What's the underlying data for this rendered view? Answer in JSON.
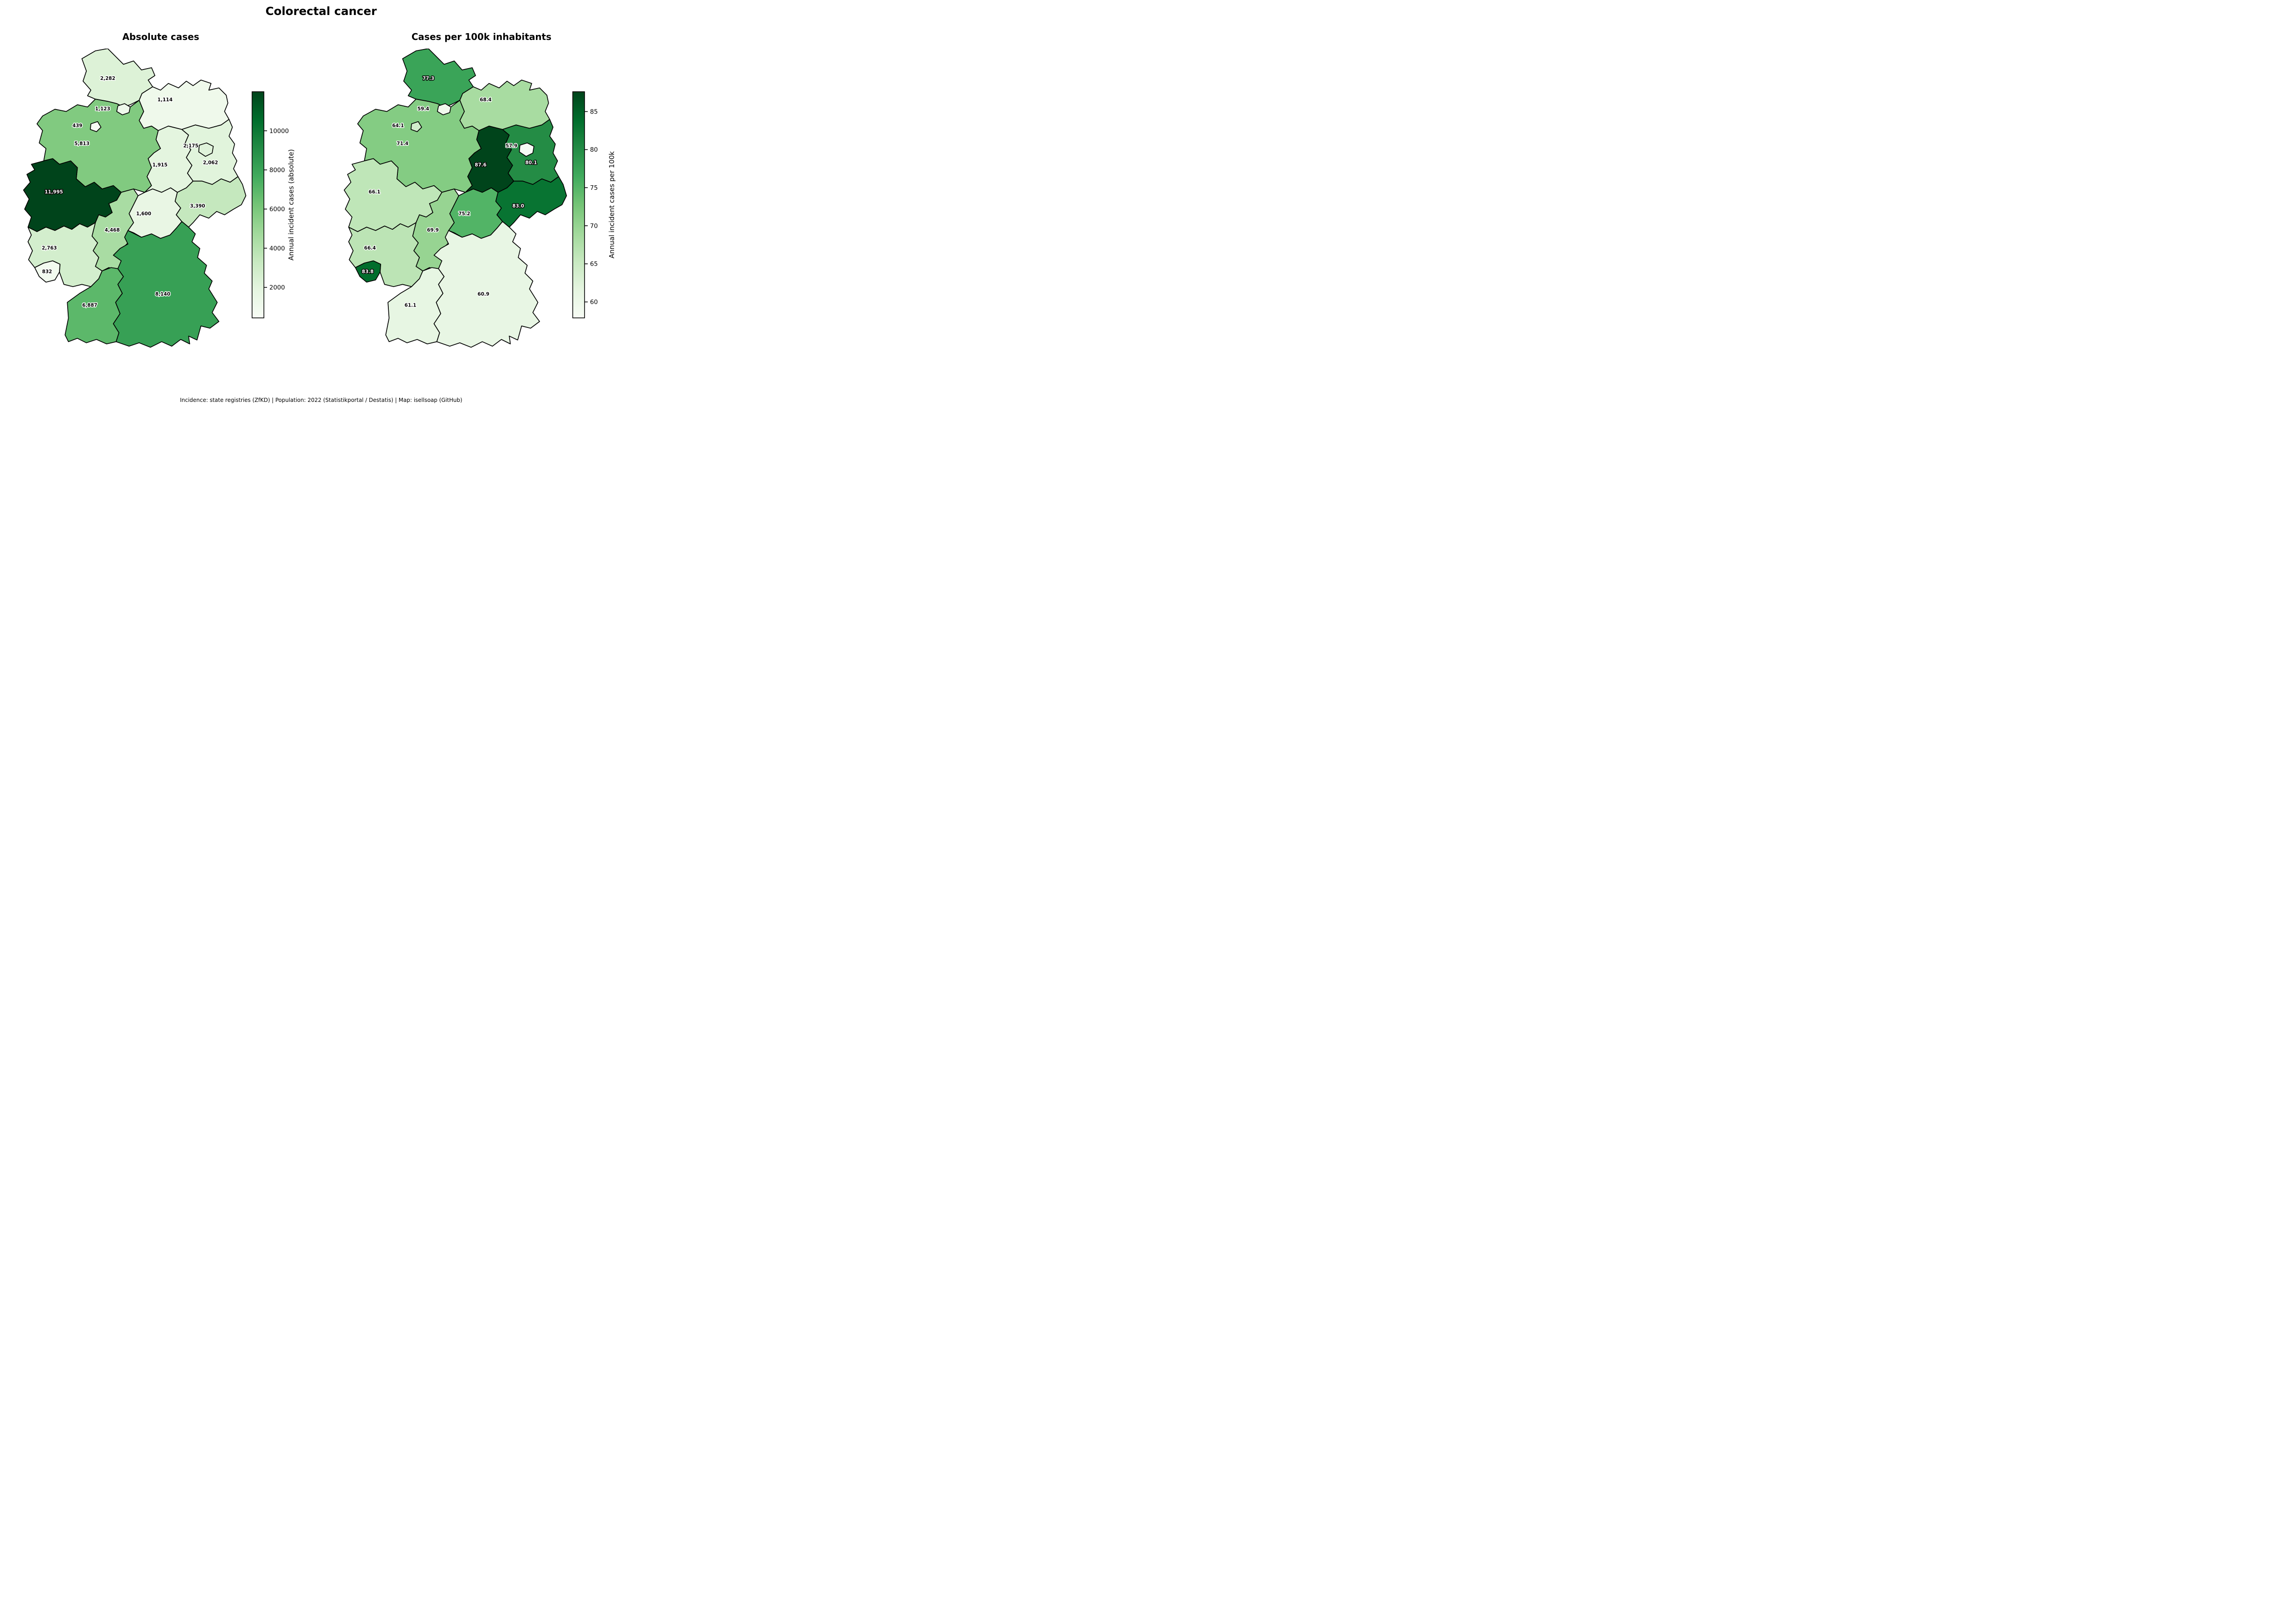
{
  "title": "Colorectal cancer",
  "footer": "Incidence: state registries (ZfKD) | Population: 2022 (Statistikportal / Destatis) | Map: isellsoap (GitHub)",
  "chart_data": {
    "type": "choropleth",
    "region": "Germany federal states",
    "colormap": {
      "name": "Greens",
      "anchors": [
        "#f7fcf5",
        "#e5f5e0",
        "#c7e9c0",
        "#a1d99b",
        "#74c476",
        "#41ab5d",
        "#238b45",
        "#006d2c",
        "#00441b"
      ]
    },
    "maps": [
      {
        "key": "abs",
        "title": "Absolute cases",
        "colorbar_label": "Annual incident cases (absolute)",
        "vmin": 439,
        "vmax": 11995,
        "ticks": [
          2000,
          4000,
          6000,
          8000,
          10000
        ],
        "white_label_states": [
          "NW"
        ]
      },
      {
        "key": "rate",
        "title": "Cases per 100k inhabitants",
        "colorbar_label": "Annual incident cases per 100k",
        "vmin": 57.9,
        "vmax": 87.6,
        "ticks": [
          60,
          65,
          70,
          75,
          80,
          85
        ],
        "white_label_states": [
          "ST",
          "SL",
          "SN",
          "BB",
          "SH"
        ]
      }
    ],
    "states": [
      {
        "id": "SH",
        "name": "Schleswig-Holstein",
        "abs": 2282,
        "abs_label": "2,282",
        "rate": 77.3,
        "rate_label": "77.3"
      },
      {
        "id": "MV",
        "name": "Mecklenburg-Vorpommern",
        "abs": 1114,
        "abs_label": "1,114",
        "rate": 68.4,
        "rate_label": "68.4"
      },
      {
        "id": "NI",
        "name": "Niedersachsen",
        "abs": 5813,
        "abs_label": "5,813",
        "rate": 71.4,
        "rate_label": "71.4"
      },
      {
        "id": "HH",
        "name": "Hamburg",
        "abs": 1123,
        "abs_label": "1,123",
        "rate": 59.4,
        "rate_label": "59.4"
      },
      {
        "id": "HB",
        "name": "Bremen",
        "abs": 439,
        "abs_label": "439",
        "rate": 64.1,
        "rate_label": "64.1"
      },
      {
        "id": "ST",
        "name": "Sachsen-Anhalt",
        "abs": 1915,
        "abs_label": "1,915",
        "rate": 87.6,
        "rate_label": "87.6"
      },
      {
        "id": "BB",
        "name": "Brandenburg",
        "abs": 2062,
        "abs_label": "2,062",
        "rate": 80.1,
        "rate_label": "80.1"
      },
      {
        "id": "BE",
        "name": "Berlin",
        "abs": 2175,
        "abs_label": "2,175",
        "rate": 57.9,
        "rate_label": "57.9"
      },
      {
        "id": "NW",
        "name": "Nordrhein-Westfalen",
        "abs": 11995,
        "abs_label": "11,995",
        "rate": 66.1,
        "rate_label": "66.1"
      },
      {
        "id": "TH",
        "name": "Thüringen",
        "abs": 1600,
        "abs_label": "1,600",
        "rate": 75.2,
        "rate_label": "75.2"
      },
      {
        "id": "SN",
        "name": "Sachsen",
        "abs": 3390,
        "abs_label": "3,390",
        "rate": 83.0,
        "rate_label": "83.0"
      },
      {
        "id": "HE",
        "name": "Hessen",
        "abs": 4468,
        "abs_label": "4,468",
        "rate": 69.9,
        "rate_label": "69.9"
      },
      {
        "id": "RP",
        "name": "Rheinland-Pfalz",
        "abs": 2763,
        "abs_label": "2,763",
        "rate": 66.4,
        "rate_label": "66.4"
      },
      {
        "id": "SL",
        "name": "Saarland",
        "abs": 832,
        "abs_label": "832",
        "rate": 83.8,
        "rate_label": "83.8"
      },
      {
        "id": "BW",
        "name": "Baden-Württemberg",
        "abs": 6887,
        "abs_label": "6,887",
        "rate": 61.1,
        "rate_label": "61.1"
      },
      {
        "id": "BY",
        "name": "Bayern",
        "abs": 8140,
        "abs_label": "8,140",
        "rate": 60.9,
        "rate_label": "60.9"
      }
    ]
  }
}
